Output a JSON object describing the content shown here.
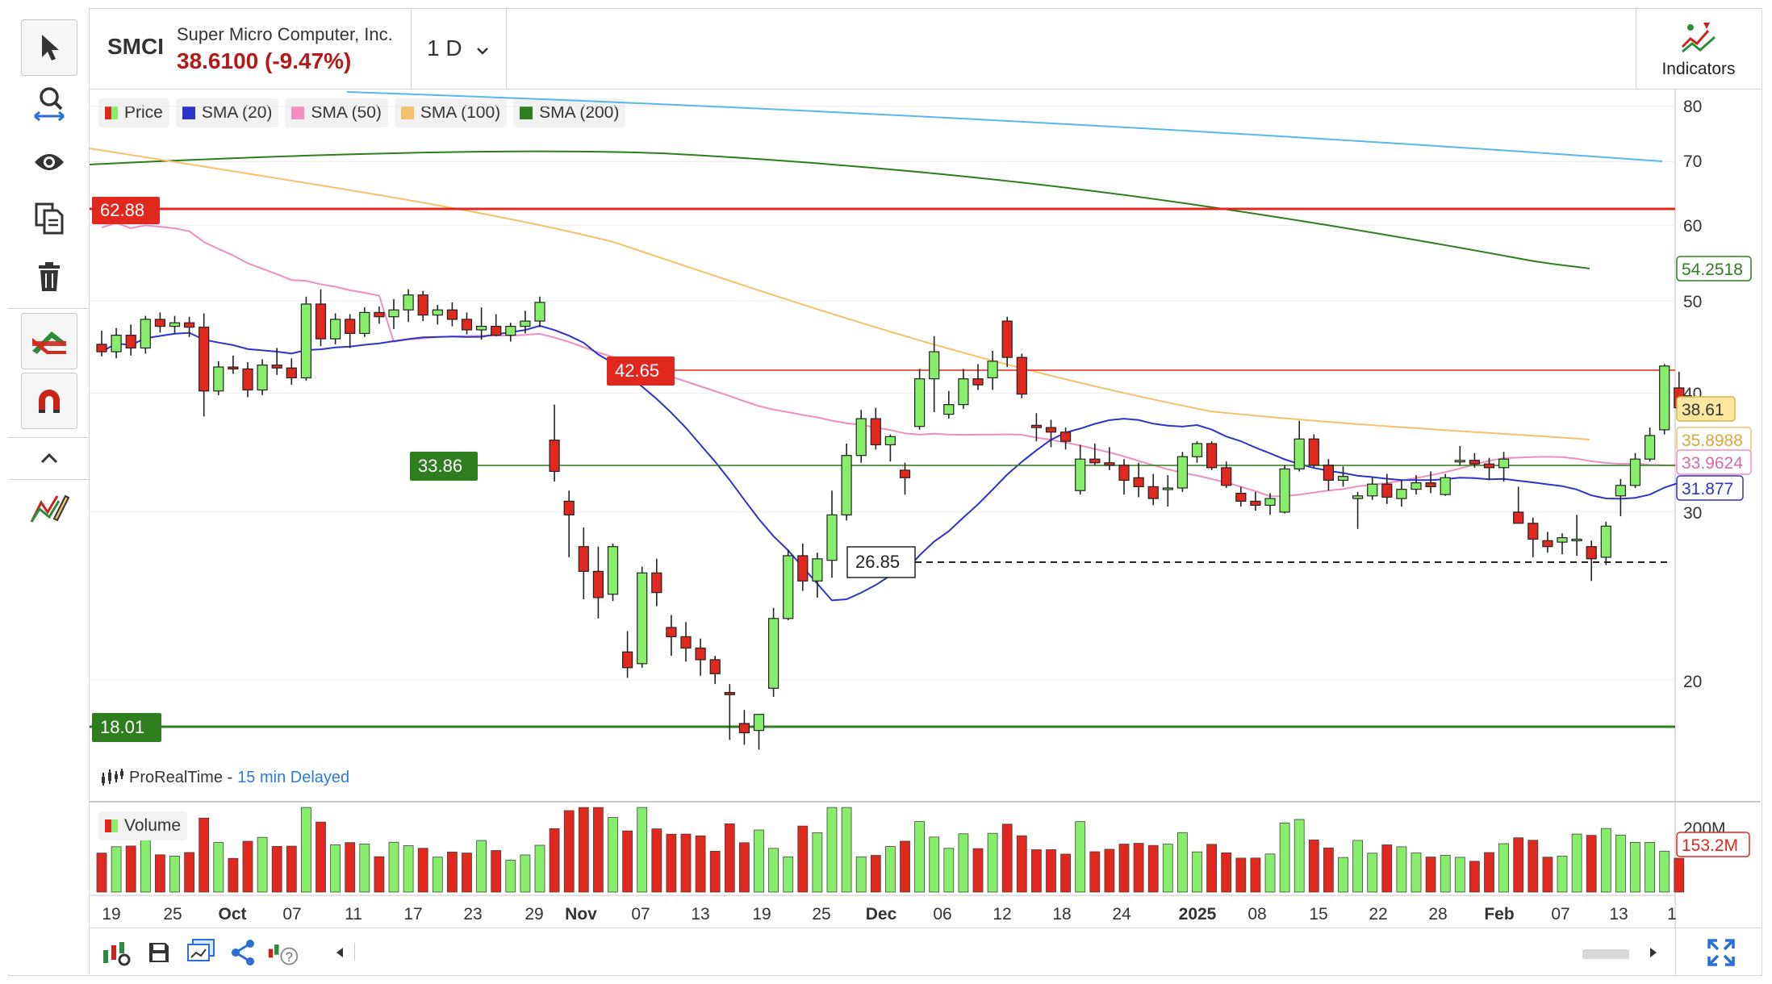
{
  "header": {
    "symbol": "SMCI",
    "company": "Super Micro Computer, Inc.",
    "price_change": "38.6100 (-9.47%)",
    "period": "1 D",
    "indicators_label": "Indicators"
  },
  "legend": [
    {
      "label": "Price",
      "color": "#5fbf3f"
    },
    {
      "label": "SMA (20)",
      "color": "#2e34c7"
    },
    {
      "label": "SMA (50)",
      "color": "#ef8fc0"
    },
    {
      "label": "SMA (100)",
      "color": "#f5c16c"
    },
    {
      "label": "SMA (200)",
      "color": "#2e7d1e"
    }
  ],
  "price_axis": {
    "ticks": [
      "80",
      "70",
      "60",
      "50",
      "40",
      "30",
      "20"
    ],
    "labels": {
      "sma200": "54.2518",
      "last_price": "38.61",
      "sma100": "35.8988",
      "sma50": "33.9624",
      "sma20": "31.877"
    }
  },
  "levels": {
    "resistance_high": "62.88",
    "resistance_mid": "42.65",
    "support_mid": "33.86",
    "support_low": "18.01",
    "recent_low": "26.85"
  },
  "source": {
    "name": "ProRealTime -",
    "delay": "15 min Delayed"
  },
  "volume": {
    "label": "Volume",
    "axis_top": "200M",
    "last": "153.2M"
  },
  "date_axis": [
    "19",
    "25",
    "Oct",
    "07",
    "11",
    "17",
    "23",
    "29",
    "Nov",
    "07",
    "13",
    "19",
    "25",
    "Dec",
    "06",
    "12",
    "18",
    "24",
    "2025",
    "08",
    "15",
    "22",
    "28",
    "Feb",
    "07",
    "13",
    "1"
  ],
  "date_axis_bold": [
    "Oct",
    "Nov",
    "Dec",
    "2025",
    "Feb"
  ],
  "colors": {
    "up": "#86ee6a",
    "down": "#e0281f",
    "resistance": "#e0281f",
    "support": "#2e7d1e",
    "sma20": "#2e34c7",
    "sma50": "#ef8fc0",
    "sma100": "#f5c16c",
    "sma200": "#2e7d1e",
    "sma_long": "#55b8ef",
    "price_text": "#b31b1b",
    "sma200_box": "#2e7d1e",
    "last_box_bg": "#fce7a0"
  },
  "chart_data": {
    "type": "candlestick",
    "timeframe": "1 D",
    "ylim": [
      16,
      80
    ],
    "y_scale": "log",
    "series": [
      {
        "name": "SMA (20)",
        "last": 31.877
      },
      {
        "name": "SMA (50)",
        "last": 33.9624
      },
      {
        "name": "SMA (100)",
        "last": 35.8988
      },
      {
        "name": "SMA (200)",
        "last": 54.2518
      }
    ],
    "candles": [
      [
        45.0,
        46.5,
        43.7,
        44.2
      ],
      [
        44.2,
        46.8,
        43.5,
        46.0
      ],
      [
        46.0,
        47.2,
        43.8,
        44.6
      ],
      [
        44.6,
        48.2,
        44.0,
        47.8
      ],
      [
        47.8,
        48.6,
        46.3,
        47.0
      ],
      [
        47.0,
        48.2,
        46.2,
        47.4
      ],
      [
        47.4,
        48.1,
        45.8,
        46.9
      ],
      [
        46.9,
        48.5,
        37.8,
        40.2
      ],
      [
        40.2,
        43.2,
        39.8,
        42.6
      ],
      [
        42.6,
        43.8,
        41.9,
        42.4
      ],
      [
        42.4,
        43.1,
        39.6,
        40.3
      ],
      [
        40.3,
        43.4,
        39.8,
        42.8
      ],
      [
        42.8,
        44.6,
        41.8,
        42.5
      ],
      [
        42.5,
        43.5,
        40.8,
        41.5
      ],
      [
        41.5,
        50.5,
        41.2,
        49.6
      ],
      [
        49.6,
        51.4,
        44.8,
        45.6
      ],
      [
        45.6,
        48.5,
        45.0,
        47.8
      ],
      [
        47.8,
        48.4,
        44.6,
        46.2
      ],
      [
        46.2,
        49.2,
        45.8,
        48.6
      ],
      [
        48.6,
        49.3,
        47.3,
        48.1
      ],
      [
        48.1,
        50.2,
        46.7,
        48.9
      ],
      [
        48.9,
        51.4,
        47.5,
        50.7
      ],
      [
        50.7,
        51.2,
        47.6,
        48.3
      ],
      [
        48.3,
        49.5,
        47.2,
        48.9
      ],
      [
        48.9,
        49.8,
        47.0,
        47.8
      ],
      [
        47.8,
        48.6,
        46.1,
        46.6
      ],
      [
        46.6,
        49.2,
        45.5,
        47.0
      ],
      [
        47.0,
        48.4,
        45.9,
        46.0
      ],
      [
        46.0,
        47.4,
        45.3,
        47.0
      ],
      [
        47.0,
        48.8,
        46.2,
        47.6
      ],
      [
        47.6,
        50.5,
        46.9,
        49.8
      ],
      [
        35.7,
        38.9,
        32.3,
        33.1
      ],
      [
        30.8,
        31.6,
        26.9,
        29.8
      ],
      [
        27.6,
        28.9,
        24.3,
        26.0
      ],
      [
        26.0,
        27.6,
        23.2,
        24.4
      ],
      [
        24.6,
        27.8,
        24.2,
        27.6
      ],
      [
        21.4,
        22.5,
        20.1,
        20.6
      ],
      [
        20.8,
        26.3,
        20.6,
        25.9
      ],
      [
        25.9,
        26.8,
        23.9,
        24.7
      ],
      [
        22.7,
        23.4,
        21.2,
        22.2
      ],
      [
        22.2,
        23.0,
        20.9,
        21.6
      ],
      [
        21.6,
        22.1,
        20.2,
        21.0
      ],
      [
        21.0,
        21.2,
        19.8,
        20.3
      ],
      [
        19.4,
        19.8,
        17.3,
        19.3
      ],
      [
        18.0,
        18.6,
        17.1,
        17.6
      ],
      [
        17.7,
        18.4,
        16.9,
        18.4
      ],
      [
        19.6,
        23.8,
        19.2,
        23.2
      ],
      [
        23.2,
        27.4,
        23.1,
        27.0
      ],
      [
        27.0,
        27.8,
        24.8,
        25.4
      ],
      [
        25.4,
        27.2,
        24.4,
        26.8
      ],
      [
        26.7,
        31.6,
        25.6,
        29.8
      ],
      [
        29.8,
        35.4,
        29.4,
        34.4
      ],
      [
        34.4,
        38.4,
        33.8,
        37.6
      ],
      [
        37.6,
        38.6,
        34.9,
        35.3
      ],
      [
        35.3,
        36.2,
        33.9,
        36.0
      ],
      [
        33.2,
        33.8,
        31.3,
        32.6
      ],
      [
        36.9,
        42.4,
        36.6,
        41.4
      ],
      [
        41.4,
        45.9,
        38.2,
        44.2
      ],
      [
        38.0,
        40.2,
        37.6,
        38.9
      ],
      [
        38.9,
        42.4,
        38.5,
        41.4
      ],
      [
        41.4,
        42.9,
        40.3,
        40.8
      ],
      [
        41.5,
        44.3,
        40.3,
        43.2
      ],
      [
        47.6,
        48.1,
        42.6,
        43.6
      ],
      [
        43.6,
        44.0,
        39.5,
        39.9
      ],
      [
        37.0,
        38.1,
        35.6,
        36.8
      ],
      [
        36.8,
        37.5,
        35.1,
        36.4
      ],
      [
        36.4,
        36.8,
        34.9,
        35.6
      ],
      [
        31.6,
        35.3,
        31.3,
        34.1
      ],
      [
        34.1,
        35.4,
        33.6,
        33.8
      ],
      [
        33.8,
        35.1,
        33.2,
        33.6
      ],
      [
        33.6,
        34.1,
        31.3,
        32.4
      ],
      [
        32.6,
        33.8,
        31.1,
        31.9
      ],
      [
        31.9,
        32.9,
        30.5,
        31.0
      ],
      [
        31.7,
        32.8,
        30.4,
        31.8
      ],
      [
        31.8,
        34.7,
        31.5,
        34.3
      ],
      [
        34.3,
        35.6,
        33.8,
        35.4
      ],
      [
        35.4,
        35.6,
        33.2,
        33.4
      ],
      [
        33.4,
        33.9,
        31.8,
        32.0
      ],
      [
        31.4,
        31.9,
        30.4,
        30.8
      ],
      [
        30.8,
        31.5,
        30.1,
        30.5
      ],
      [
        30.5,
        31.4,
        29.8,
        31.0
      ],
      [
        30.0,
        33.6,
        29.9,
        33.3
      ],
      [
        33.3,
        37.4,
        33.1,
        35.8
      ],
      [
        35.8,
        36.2,
        33.4,
        33.6
      ],
      [
        33.6,
        34.1,
        31.6,
        32.4
      ],
      [
        32.4,
        33.5,
        31.9,
        32.7
      ],
      [
        31.0,
        31.5,
        28.8,
        31.2
      ],
      [
        31.2,
        32.6,
        30.9,
        32.1
      ],
      [
        32.1,
        32.9,
        30.6,
        31.1
      ],
      [
        31.0,
        32.4,
        30.4,
        31.7
      ],
      [
        31.7,
        32.8,
        31.3,
        32.2
      ],
      [
        32.2,
        33.1,
        31.4,
        31.9
      ],
      [
        31.3,
        32.9,
        31.2,
        32.6
      ],
      [
        33.9,
        35.2,
        33.6,
        34.0
      ],
      [
        34.0,
        34.6,
        33.4,
        33.7
      ],
      [
        33.7,
        34.2,
        32.4,
        33.4
      ],
      [
        33.4,
        34.7,
        32.3,
        34.1
      ],
      [
        30.0,
        31.9,
        29.4,
        29.2
      ],
      [
        29.2,
        29.6,
        26.9,
        28.1
      ],
      [
        28.0,
        28.6,
        27.2,
        27.6
      ],
      [
        27.9,
        28.5,
        27.1,
        28.2
      ],
      [
        28.1,
        29.8,
        27.0,
        28.1
      ],
      [
        27.6,
        28.0,
        25.4,
        26.8
      ],
      [
        26.9,
        29.3,
        26.4,
        29.0
      ],
      [
        31.2,
        32.5,
        29.7,
        32.0
      ],
      [
        32.0,
        34.6,
        31.8,
        34.1
      ],
      [
        34.1,
        36.8,
        33.9,
        36.1
      ],
      [
        36.6,
        42.9,
        36.2,
        42.7
      ],
      [
        40.5,
        42.1,
        38.2,
        38.6
      ]
    ]
  }
}
